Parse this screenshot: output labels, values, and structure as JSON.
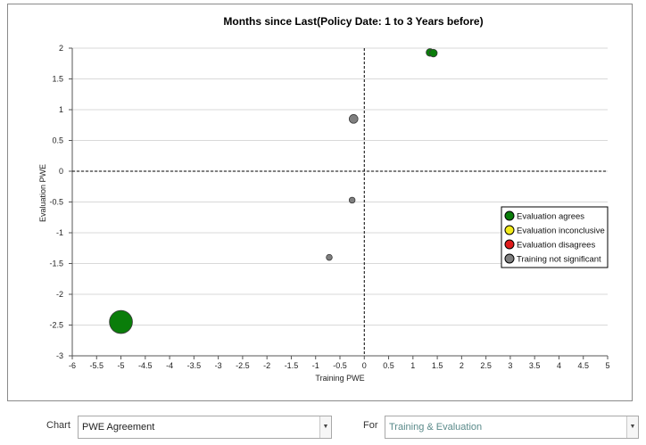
{
  "chart_data": {
    "type": "scatter",
    "title": "Months since Last(Policy Date: 1 to 3 Years before)",
    "xlabel": "Training PWE",
    "ylabel": "Evaluation PWE",
    "xlim": [
      -6,
      5
    ],
    "ylim": [
      -3,
      2
    ],
    "xticks": [
      -6,
      -5.5,
      -5,
      -4.5,
      -4,
      -3.5,
      -3,
      -2.5,
      -2,
      -1.5,
      -1,
      -0.5,
      0,
      0.5,
      1,
      1.5,
      2,
      2.5,
      3,
      3.5,
      4,
      4.5,
      5
    ],
    "yticks": [
      2,
      1.5,
      1,
      0.5,
      0,
      -0.5,
      -1,
      -1.5,
      -2,
      -2.5,
      -3
    ],
    "grid": "horizontal",
    "reference_lines": {
      "x": 0,
      "y": 0
    },
    "legend_position": "right",
    "series": [
      {
        "name": "Evaluation agrees",
        "color": "#0a7d0a",
        "points": [
          {
            "x": -5,
            "y": -2.45,
            "size": 9
          },
          {
            "x": 1.35,
            "y": 1.93,
            "size": 1
          },
          {
            "x": 1.42,
            "y": 1.92,
            "size": 1
          }
        ]
      },
      {
        "name": "Evaluation inconclusive",
        "color": "#f2ea1a",
        "points": []
      },
      {
        "name": "Evaluation disagrees",
        "color": "#e01b1b",
        "points": []
      },
      {
        "name": "Training not significant",
        "color": "#7f7f7f",
        "points": [
          {
            "x": -0.22,
            "y": 0.85,
            "size": 1.3
          },
          {
            "x": -0.25,
            "y": -0.47,
            "size": 0.6
          },
          {
            "x": -0.72,
            "y": -1.4,
            "size": 0.6
          }
        ]
      }
    ]
  },
  "controls": {
    "chart_label": "Chart",
    "chart_value": "PWE Agreement",
    "for_label": "For",
    "for_value": "Training & Evaluation"
  },
  "icons": {
    "dropdown": "chevron-down-icon"
  }
}
